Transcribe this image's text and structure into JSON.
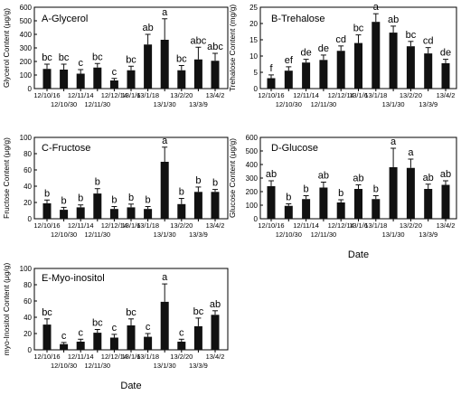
{
  "colors": {
    "bar": "#111111",
    "axis": "#000000",
    "background": "#ffffff"
  },
  "chart_data": [
    {
      "type": "bar",
      "title": "A-Glycerol",
      "ylabel": "Glycerol Content (μg/g)",
      "xlabel": "",
      "categories": [
        "12/10/16",
        "12/10/30",
        "12/11/14",
        "12/11/30",
        "12/12/14",
        "13/1/6",
        "13/1/18",
        "13/1/30",
        "13/2/20",
        "13/3/9",
        "13/4/2"
      ],
      "values": [
        145,
        140,
        110,
        155,
        60,
        135,
        325,
        360,
        135,
        215,
        205
      ],
      "errors": [
        35,
        40,
        30,
        30,
        15,
        30,
        75,
        155,
        35,
        90,
        55
      ],
      "letters": [
        "bc",
        "bc",
        "c",
        "bc",
        "c",
        "bc",
        "ab",
        "a",
        "bc",
        "abc",
        "abc"
      ],
      "yticks": [
        0,
        100,
        200,
        300,
        400,
        500,
        600
      ],
      "ylim": [
        0,
        600
      ]
    },
    {
      "type": "bar",
      "title": "B-Trehalose",
      "ylabel": "Trehalose Content (mg/g)",
      "xlabel": "",
      "categories": [
        "12/10/16",
        "12/10/30",
        "12/11/14",
        "12/11/30",
        "12/12/14",
        "13/1/6",
        "13/1/18",
        "13/1/30",
        "13/2/20",
        "13/3/9",
        "13/4/2"
      ],
      "values": [
        3.2,
        5.5,
        8,
        8.8,
        11.6,
        14,
        20.5,
        17.2,
        13,
        10.8,
        7.8
      ],
      "errors": [
        1,
        1.2,
        1,
        1.5,
        1.5,
        2.5,
        2.5,
        2,
        1.5,
        1.8,
        1.2
      ],
      "letters": [
        "f",
        "ef",
        "de",
        "de",
        "cd",
        "bc",
        "a",
        "ab",
        "bc",
        "cd",
        "de"
      ],
      "yticks": [
        0,
        5,
        10,
        15,
        20,
        25
      ],
      "ylim": [
        0,
        25
      ]
    },
    {
      "type": "bar",
      "title": "C-Fructose",
      "ylabel": "Fructose Content (μg/g)",
      "xlabel": "",
      "categories": [
        "12/10/16",
        "12/10/30",
        "12/11/14",
        "12/11/30",
        "12/12/14",
        "13/1/6",
        "13/1/18",
        "13/1/30",
        "13/2/20",
        "13/3/9",
        "13/4/2"
      ],
      "values": [
        19,
        11,
        14,
        31,
        12,
        14,
        12,
        70,
        18,
        33,
        33
      ],
      "errors": [
        4,
        3,
        3,
        6,
        3,
        4,
        3,
        18,
        7,
        6,
        3
      ],
      "letters": [
        "b",
        "b",
        "b",
        "b",
        "b",
        "b",
        "b",
        "a",
        "b",
        "b",
        "b"
      ],
      "yticks": [
        0,
        20,
        40,
        60,
        80,
        100
      ],
      "ylim": [
        0,
        100
      ]
    },
    {
      "type": "bar",
      "title": "D-Glucose",
      "ylabel": "Glucose Content (μg/g)",
      "xlabel": "Date",
      "categories": [
        "12/10/16",
        "12/10/30",
        "12/11/14",
        "12/11/30",
        "12/12/14",
        "13/1/6",
        "13/1/18",
        "13/1/30",
        "13/2/20",
        "13/3/9",
        "13/4/2"
      ],
      "values": [
        240,
        95,
        145,
        230,
        120,
        220,
        145,
        380,
        375,
        220,
        250
      ],
      "errors": [
        40,
        15,
        25,
        40,
        20,
        30,
        25,
        140,
        65,
        35,
        30
      ],
      "letters": [
        "ab",
        "b",
        "b",
        "ab",
        "b",
        "ab",
        "b",
        "a",
        "a",
        "ab",
        "ab"
      ],
      "yticks": [
        0,
        100,
        200,
        300,
        400,
        500,
        600
      ],
      "ylim": [
        0,
        600
      ]
    },
    {
      "type": "bar",
      "title": "E-Myo-inositol",
      "ylabel": "myo-Inositol Content (μg/g)",
      "xlabel": "Date",
      "categories": [
        "12/10/16",
        "12/10/30",
        "12/11/14",
        "12/11/30",
        "12/12/14",
        "13/1/6",
        "13/1/18",
        "13/1/30",
        "13/2/20",
        "13/3/9",
        "13/4/2"
      ],
      "values": [
        31,
        7,
        10,
        21,
        15,
        30,
        16,
        59,
        10,
        29,
        43
      ],
      "errors": [
        7,
        2,
        3,
        4,
        4,
        8,
        4,
        22,
        3,
        10,
        5
      ],
      "letters": [
        "bc",
        "c",
        "c",
        "bc",
        "c",
        "bc",
        "c",
        "a",
        "c",
        "bc",
        "ab"
      ],
      "yticks": [
        0,
        20,
        40,
        60,
        80,
        100
      ],
      "ylim": [
        0,
        100
      ]
    }
  ]
}
